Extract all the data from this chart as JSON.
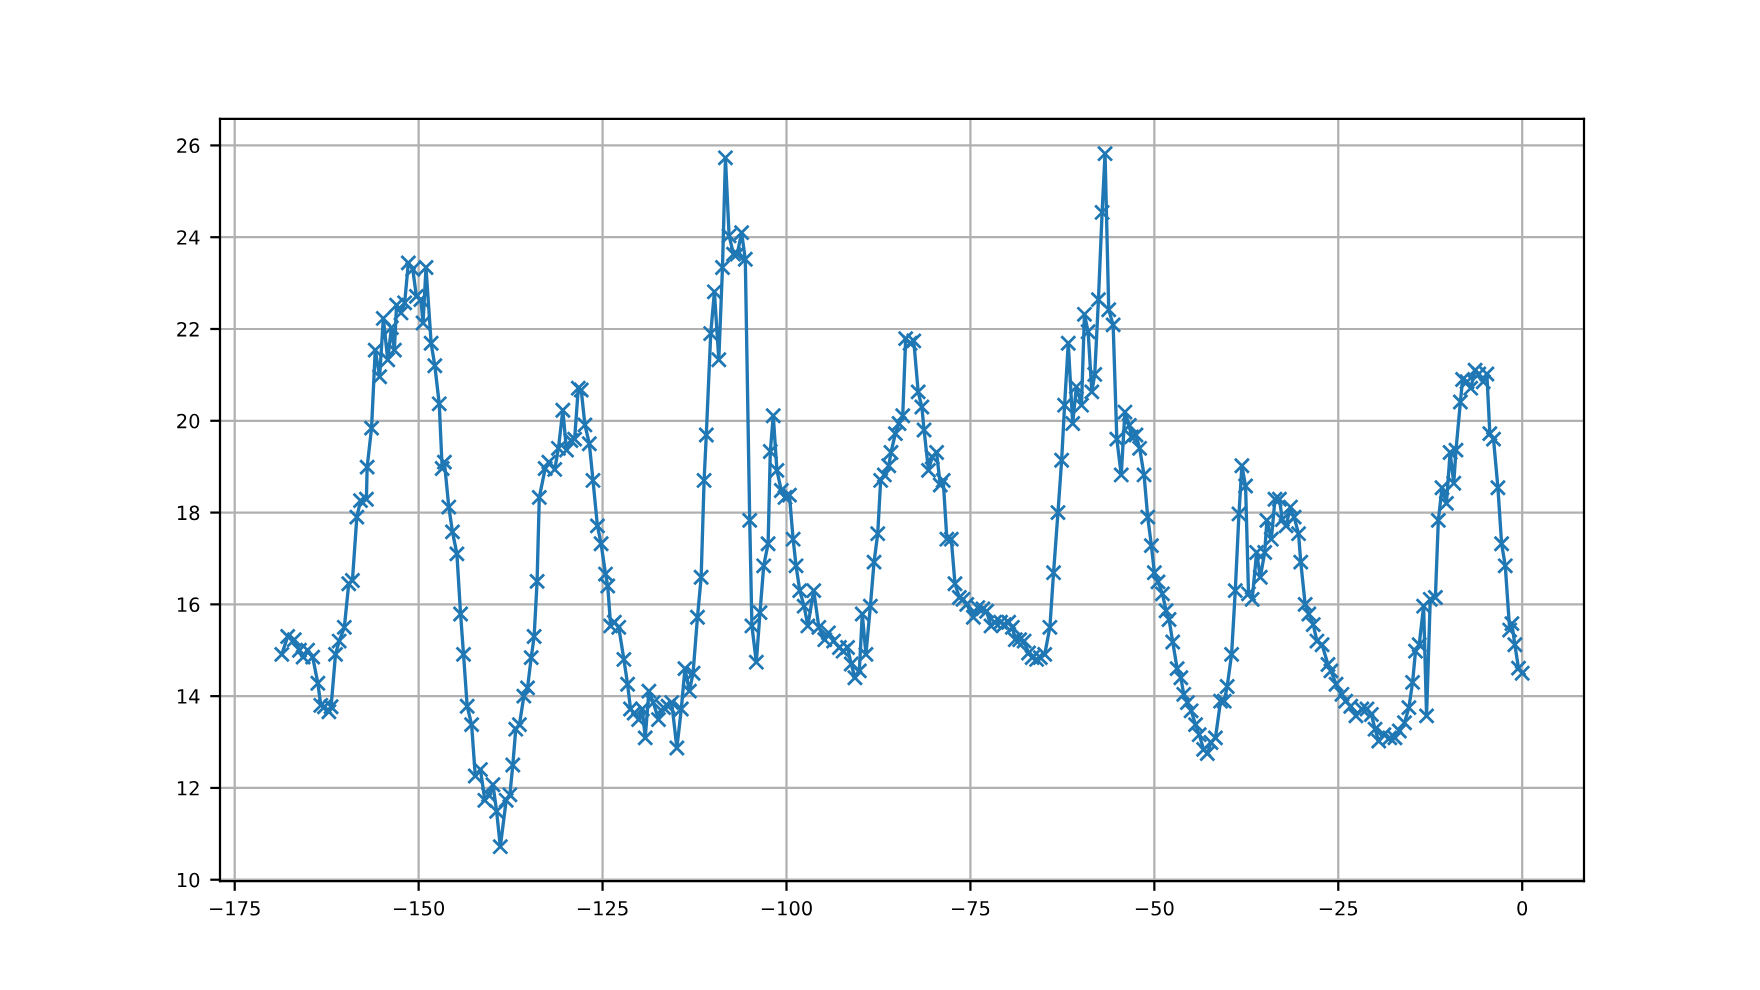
{
  "chart_data": {
    "type": "line",
    "x": [
      -168.6,
      -167.8,
      -166.9,
      -166.2,
      -165.7,
      -165.1,
      -164.4,
      -163.7,
      -163.3,
      -162.8,
      -162.2,
      -161.9,
      -161.3,
      -160.8,
      -160.1,
      -159.5,
      -159.0,
      -158.4,
      -157.9,
      -157.1,
      -157.0,
      -156.4,
      -155.9,
      -155.3,
      -154.8,
      -154.2,
      -153.7,
      -153.3,
      -153.0,
      -152.4,
      -151.9,
      -151.4,
      -150.8,
      -150.3,
      -149.7,
      -149.4,
      -149.0,
      -148.3,
      -147.8,
      -147.2,
      -146.8,
      -146.5,
      -145.9,
      -145.4,
      -144.8,
      -144.3,
      -143.9,
      -143.4,
      -142.8,
      -142.3,
      -141.6,
      -141.0,
      -140.5,
      -139.9,
      -139.4,
      -138.9,
      -138.1,
      -137.6,
      -137.2,
      -136.8,
      -136.3,
      -135.7,
      -135.2,
      -134.7,
      -134.3,
      -133.9,
      -133.6,
      -132.8,
      -132.3,
      -131.5,
      -131.0,
      -130.4,
      -129.9,
      -129.3,
      -128.8,
      -128.3,
      -127.9,
      -127.4,
      -126.8,
      -126.3,
      -125.7,
      -125.2,
      -124.6,
      -124.3,
      -123.9,
      -123.4,
      -122.8,
      -122.1,
      -121.6,
      -121.2,
      -120.7,
      -120.1,
      -119.6,
      -119.2,
      -118.7,
      -118.1,
      -117.4,
      -116.7,
      -116.1,
      -115.6,
      -114.9,
      -114.3,
      -113.8,
      -113.2,
      -112.7,
      -112.1,
      -111.6,
      -111.2,
      -110.9,
      -110.3,
      -109.8,
      -109.2,
      -108.7,
      -108.3,
      -107.8,
      -107.2,
      -106.7,
      -106.1,
      -105.6,
      -105.0,
      -104.7,
      -104.1,
      -103.6,
      -103.1,
      -102.5,
      -102.2,
      -101.8,
      -101.3,
      -100.7,
      -100.2,
      -99.6,
      -99.1,
      -98.7,
      -98.2,
      -97.6,
      -97.1,
      -96.3,
      -95.6,
      -94.8,
      -94.3,
      -93.6,
      -92.8,
      -92.3,
      -91.7,
      -91.2,
      -90.7,
      -90.1,
      -89.7,
      -89.2,
      -88.6,
      -88.1,
      -87.6,
      -87.2,
      -86.7,
      -86.1,
      -85.8,
      -85.2,
      -84.7,
      -84.2,
      -83.8,
      -83.2,
      -82.7,
      -82.1,
      -81.6,
      -81.3,
      -80.7,
      -80.2,
      -79.6,
      -79.1,
      -78.7,
      -78.2,
      -77.6,
      -77.1,
      -76.5,
      -76.0,
      -75.5,
      -74.6,
      -74.0,
      -73.3,
      -72.8,
      -72.2,
      -71.7,
      -70.9,
      -70.4,
      -69.8,
      -69.3,
      -68.9,
      -68.3,
      -67.7,
      -67.1,
      -66.6,
      -66.0,
      -65.5,
      -64.9,
      -64.2,
      -63.7,
      -63.1,
      -62.6,
      -62.2,
      -61.7,
      -61.1,
      -60.6,
      -59.9,
      -59.5,
      -59.0,
      -58.5,
      -58.1,
      -57.6,
      -57.1,
      -56.7,
      -56.2,
      -55.6,
      -55.1,
      -54.5,
      -54.0,
      -53.4,
      -53.1,
      -52.5,
      -52.0,
      -51.4,
      -50.9,
      -50.4,
      -50.0,
      -49.5,
      -48.9,
      -48.4,
      -48.0,
      -47.5,
      -46.9,
      -46.4,
      -46.0,
      -45.5,
      -45.0,
      -44.4,
      -43.9,
      -43.3,
      -42.8,
      -42.3,
      -41.7,
      -41.0,
      -40.5,
      -40.1,
      -39.5,
      -39.0,
      -38.5,
      -38.1,
      -37.6,
      -37.2,
      -36.7,
      -36.1,
      -35.6,
      -35.0,
      -34.7,
      -34.1,
      -33.6,
      -33.0,
      -32.6,
      -32.1,
      -31.5,
      -31.0,
      -30.4,
      -30.1,
      -29.5,
      -29.0,
      -28.4,
      -27.9,
      -27.2,
      -26.4,
      -26.0,
      -25.3,
      -24.5,
      -24.0,
      -23.3,
      -22.6,
      -21.8,
      -21.1,
      -20.5,
      -20.0,
      -19.5,
      -18.8,
      -18.0,
      -17.3,
      -16.7,
      -16.0,
      -15.4,
      -14.9,
      -14.5,
      -14.0,
      -13.4,
      -13.0,
      -12.5,
      -11.8,
      -11.4,
      -10.9,
      -10.3,
      -9.8,
      -9.3,
      -9.0,
      -8.4,
      -8.1,
      -7.5,
      -7.0,
      -6.4,
      -5.9,
      -5.3,
      -4.8,
      -4.4,
      -3.9,
      -3.3,
      -2.8,
      -2.3,
      -1.7,
      -1.4,
      -1.0,
      -0.5,
      0.0
    ],
    "values": [
      14.91,
      15.3,
      15.23,
      15.0,
      14.85,
      15.0,
      14.85,
      14.28,
      13.8,
      13.77,
      13.66,
      13.77,
      14.91,
      15.2,
      15.5,
      16.45,
      16.52,
      17.9,
      18.26,
      18.29,
      18.99,
      19.84,
      21.54,
      20.96,
      22.23,
      21.33,
      22.03,
      21.54,
      22.52,
      22.35,
      22.57,
      23.44,
      23.3,
      22.71,
      22.64,
      22.13,
      23.34,
      21.69,
      21.2,
      20.37,
      18.96,
      19.1,
      18.12,
      17.58,
      17.1,
      15.79,
      14.91,
      13.78,
      13.38,
      12.26,
      12.4,
      11.73,
      11.85,
      12.07,
      11.49,
      10.72,
      11.73,
      11.85,
      12.5,
      13.28,
      13.38,
      14.0,
      14.18,
      14.84,
      15.3,
      16.5,
      18.33,
      18.96,
      19.1,
      18.94,
      19.4,
      20.23,
      19.36,
      19.57,
      19.6,
      20.71,
      20.67,
      19.91,
      19.5,
      18.7,
      17.71,
      17.32,
      16.66,
      16.4,
      15.53,
      15.61,
      15.5,
      14.8,
      14.26,
      13.72,
      13.63,
      13.49,
      13.72,
      13.09,
      14.11,
      13.86,
      13.49,
      13.75,
      13.78,
      13.86,
      12.87,
      13.72,
      14.6,
      14.11,
      14.5,
      15.72,
      16.59,
      18.7,
      19.69,
      21.9,
      22.81,
      21.33,
      23.34,
      25.73,
      24.03,
      23.63,
      23.63,
      24.1,
      23.52,
      17.83,
      15.53,
      14.74,
      15.82,
      16.84,
      17.32,
      19.33,
      20.11,
      18.92,
      18.48,
      18.33,
      18.38,
      17.42,
      16.84,
      16.3,
      15.96,
      15.53,
      16.3,
      15.5,
      15.23,
      15.38,
      15.2,
      15.06,
      14.98,
      15.06,
      14.7,
      14.4,
      14.55,
      15.79,
      14.91,
      15.96,
      16.92,
      17.54,
      18.7,
      18.82,
      19.02,
      19.31,
      19.72,
      19.94,
      20.11,
      21.79,
      21.69,
      21.74,
      20.63,
      20.3,
      19.8,
      18.92,
      19.21,
      19.31,
      18.6,
      18.7,
      17.42,
      17.42,
      16.45,
      16.15,
      16.11,
      16.0,
      15.72,
      15.93,
      15.9,
      15.85,
      15.53,
      15.61,
      15.61,
      15.56,
      15.61,
      15.5,
      15.23,
      15.23,
      15.2,
      14.94,
      14.84,
      14.8,
      14.84,
      14.91,
      15.5,
      16.69,
      18.0,
      19.14,
      20.34,
      21.69,
      19.94,
      20.74,
      20.34,
      22.32,
      21.94,
      20.63,
      21.01,
      22.64,
      24.54,
      25.82,
      22.42,
      22.09,
      19.6,
      18.82,
      20.19,
      19.9,
      19.65,
      19.69,
      19.4,
      18.82,
      17.9,
      17.28,
      16.69,
      16.49,
      16.23,
      15.86,
      15.67,
      15.18,
      14.6,
      14.4,
      14.04,
      13.86,
      13.68,
      13.38,
      13.16,
      12.84,
      12.75,
      12.99,
      13.09,
      13.89,
      13.89,
      14.21,
      14.91,
      16.3,
      17.97,
      19.02,
      18.58,
      16.23,
      16.11,
      17.13,
      16.59,
      17.13,
      17.83,
      17.42,
      18.29,
      18.29,
      17.85,
      17.71,
      18.12,
      17.9,
      17.54,
      16.92,
      16.0,
      15.79,
      15.56,
      15.2,
      15.12,
      14.69,
      14.55,
      14.26,
      14.04,
      13.89,
      13.78,
      13.57,
      13.72,
      13.72,
      13.6,
      13.28,
      13.02,
      13.16,
      13.09,
      13.09,
      13.24,
      13.42,
      13.75,
      14.3,
      14.98,
      15.12,
      15.96,
      13.57,
      16.11,
      16.15,
      17.83,
      18.54,
      18.2,
      19.31,
      18.64,
      19.36,
      20.41,
      20.9,
      20.85,
      20.71,
      21.1,
      21.02,
      20.85,
      21.02,
      19.72,
      19.6,
      18.54,
      17.32,
      16.84,
      15.44,
      15.58,
      15.12,
      14.61,
      14.5
    ],
    "color": "#1f77b4",
    "marker": "cross",
    "line_style": "solid",
    "xlim": [
      -177.0,
      8.4
    ],
    "xticks": [
      {
        "value": -175,
        "label": "−175"
      },
      {
        "value": -150,
        "label": "−150"
      },
      {
        "value": -125,
        "label": "−125"
      },
      {
        "value": -100,
        "label": "−100"
      },
      {
        "value": -75,
        "label": "−75"
      },
      {
        "value": -50,
        "label": "−50"
      },
      {
        "value": -25,
        "label": "−25"
      },
      0
    ],
    "ylim": [
      9.97,
      26.58
    ],
    "yticks": [
      10,
      12,
      14,
      16,
      18,
      20,
      22,
      24,
      26
    ],
    "grid": true
  }
}
